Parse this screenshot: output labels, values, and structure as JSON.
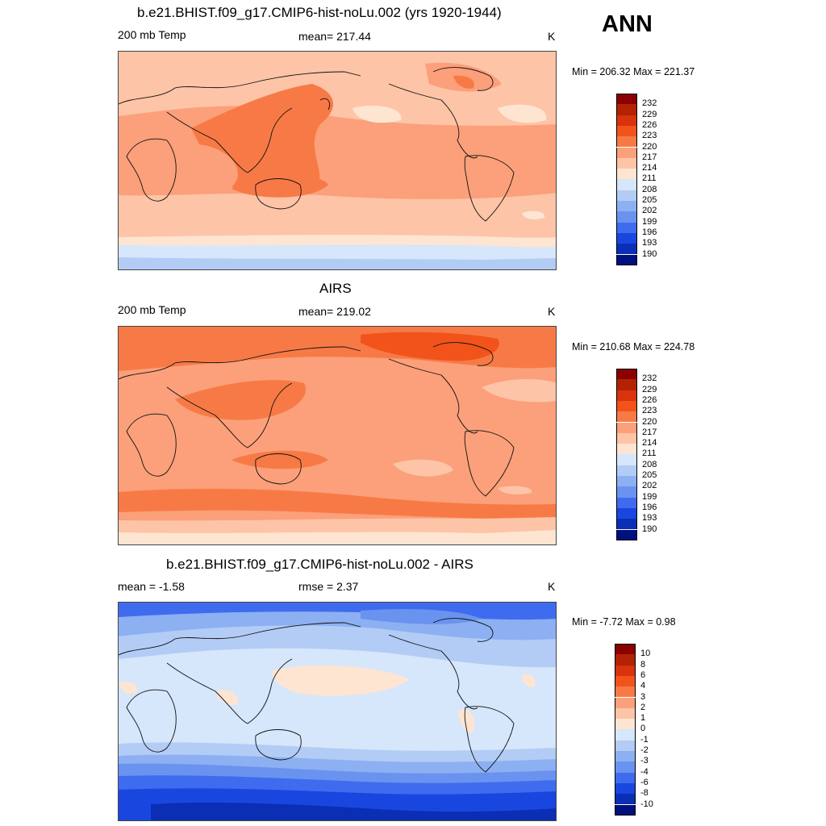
{
  "season": "ANN",
  "units": "K",
  "panels": [
    {
      "title": "b.e21.BHIST.f09_g17.CMIP6-hist-noLu.002 (yrs 1920-1944)",
      "left_label": "200 mb Temp",
      "center_label": "mean= 217.44",
      "units": "K",
      "minmax": "Min = 206.32 Max = 221.37",
      "legend": {
        "colors": [
          "#8b0000",
          "#b22203",
          "#d8330c",
          "#f2531a",
          "#f77a46",
          "#fba07a",
          "#fdc4a7",
          "#fde5d2",
          "#d6e6fb",
          "#b3ccf6",
          "#8cb0f2",
          "#6a93ef",
          "#3f6cee",
          "#1a46e0",
          "#0a2fb4",
          "#00107e"
        ],
        "labels": [
          "232",
          "229",
          "226",
          "223",
          "220",
          "217",
          "214",
          "211",
          "208",
          "205",
          "202",
          "199",
          "196",
          "193",
          "190"
        ]
      }
    },
    {
      "title": "AIRS",
      "left_label": "200 mb Temp",
      "center_label": "mean= 219.02",
      "units": "K",
      "minmax": "Min = 210.68 Max = 224.78",
      "legend": {
        "colors": [
          "#8b0000",
          "#b22203",
          "#d8330c",
          "#f2531a",
          "#f77a46",
          "#fba07a",
          "#fdc4a7",
          "#fde5d2",
          "#d6e6fb",
          "#b3ccf6",
          "#8cb0f2",
          "#6a93ef",
          "#3f6cee",
          "#1a46e0",
          "#0a2fb4",
          "#00107e"
        ],
        "labels": [
          "232",
          "229",
          "226",
          "223",
          "220",
          "217",
          "214",
          "211",
          "208",
          "205",
          "202",
          "199",
          "196",
          "193",
          "190"
        ]
      }
    },
    {
      "title": "b.e21.BHIST.f09_g17.CMIP6-hist-noLu.002 - AIRS",
      "left_label": "mean =  -1.58",
      "center_label": "rmse =   2.37",
      "units": "K",
      "minmax": "Min =  -7.72 Max =   0.98",
      "legend": {
        "colors": [
          "#8b0000",
          "#b22203",
          "#d8330c",
          "#f2531a",
          "#f77a46",
          "#fba07a",
          "#fdc4a7",
          "#fde5d2",
          "#d6e6fb",
          "#b3ccf6",
          "#8cb0f2",
          "#6a93ef",
          "#3f6cee",
          "#1a46e0",
          "#0a2fb4",
          "#00107e"
        ],
        "labels": [
          "10",
          "8",
          "6",
          "4",
          "3",
          "2",
          "1",
          "0",
          "-1",
          "-2",
          "-3",
          "-4",
          "-6",
          "-8",
          "-10"
        ]
      }
    }
  ]
}
